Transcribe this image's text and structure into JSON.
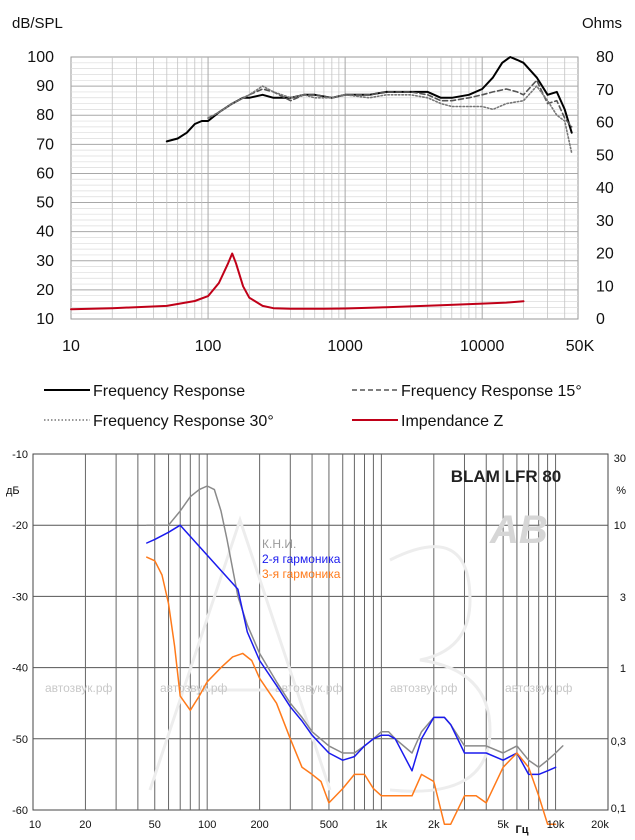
{
  "chart_data": [
    {
      "type": "line",
      "ylabel_left": "dB/SPL",
      "ylabel_right": "Ohms",
      "xscale": "log",
      "xlim": [
        10,
        50000
      ],
      "ylim_left": [
        10,
        100
      ],
      "ylim_right": [
        0,
        80
      ],
      "x_ticks": [
        {
          "value": 10,
          "label": "10"
        },
        {
          "value": 100,
          "label": "100"
        },
        {
          "value": 1000,
          "label": "1000"
        },
        {
          "value": 10000,
          "label": "10000"
        },
        {
          "value": 50000,
          "label": "50K"
        }
      ],
      "y_ticks_left": [
        "10",
        "20",
        "30",
        "40",
        "50",
        "60",
        "70",
        "80",
        "90",
        "100"
      ],
      "y_ticks_right": [
        "0",
        "10",
        "20",
        "30",
        "40",
        "50",
        "60",
        "70",
        "80"
      ],
      "grid": true,
      "series": [
        {
          "name": "Frequency Response",
          "axis": "left",
          "color": "#000000",
          "dash": "solid",
          "x": [
            50,
            60,
            70,
            80,
            90,
            100,
            120,
            150,
            180,
            200,
            250,
            300,
            400,
            500,
            600,
            800,
            1000,
            1500,
            2000,
            3000,
            4000,
            5000,
            6000,
            8000,
            10000,
            12000,
            14000,
            16000,
            18000,
            20000,
            25000,
            30000,
            35000,
            40000,
            45000
          ],
          "y": [
            71,
            72,
            74,
            77,
            78,
            78,
            81,
            84,
            86,
            86,
            87,
            86,
            86,
            87,
            87,
            86,
            87,
            87,
            88,
            88,
            88,
            86,
            86,
            87,
            89,
            93,
            98,
            100,
            99,
            98,
            93,
            87,
            88,
            82,
            74
          ]
        },
        {
          "name": "Frequency Response 15°",
          "axis": "left",
          "color": "#555555",
          "dash": "dashed",
          "x": [
            100,
            120,
            150,
            200,
            250,
            300,
            400,
            500,
            600,
            800,
            1000,
            1500,
            2000,
            3000,
            4000,
            5000,
            6000,
            8000,
            10000,
            12000,
            15000,
            18000,
            20000,
            25000,
            30000,
            35000,
            40000,
            45000
          ],
          "y": [
            79,
            81,
            84,
            87,
            89,
            88,
            85,
            87,
            87,
            86,
            87,
            87,
            88,
            88,
            87,
            85,
            85,
            86,
            87,
            88,
            89,
            88,
            87,
            92,
            84,
            85,
            79,
            76
          ]
        },
        {
          "name": "Frequency Response 30°",
          "axis": "left",
          "color": "#777777",
          "dash": "dotted",
          "x": [
            100,
            120,
            150,
            200,
            250,
            300,
            400,
            500,
            600,
            800,
            1000,
            1500,
            2000,
            3000,
            4000,
            5000,
            6000,
            8000,
            10000,
            12000,
            15000,
            20000,
            25000,
            30000,
            35000,
            40000,
            45000
          ],
          "y": [
            79,
            81,
            84,
            87,
            90,
            88,
            86,
            87,
            86,
            86,
            87,
            86,
            87,
            87,
            86,
            84,
            83,
            83,
            83,
            82,
            84,
            85,
            90,
            85,
            80,
            78,
            67
          ]
        },
        {
          "name": "Impendance Z",
          "axis": "right",
          "color": "#c00018",
          "dash": "solid",
          "x": [
            10,
            20,
            50,
            80,
            100,
            120,
            140,
            150,
            160,
            180,
            200,
            250,
            300,
            400,
            500,
            700,
            1000,
            2000,
            5000,
            10000,
            15000,
            20000
          ],
          "y": [
            3,
            3.3,
            4,
            5.5,
            7,
            11,
            17,
            20,
            17,
            10,
            6.5,
            4,
            3.3,
            3.1,
            3.1,
            3.1,
            3.2,
            3.6,
            4.2,
            4.7,
            5,
            5.4
          ]
        }
      ],
      "legend": [
        {
          "label": "Frequency Response",
          "style": "solid-black"
        },
        {
          "label": "Frequency Response 15°",
          "style": "dashed-gray"
        },
        {
          "label": "Frequency Response 30°",
          "style": "dotted-gray"
        },
        {
          "label": "Impendance Z",
          "style": "solid-red"
        }
      ]
    },
    {
      "type": "line",
      "title": "BLAM LFR 80",
      "ylabel_left": "дБ",
      "ylabel_right": "%",
      "xlabel": "Гц",
      "xscale": "log",
      "xlim": [
        10,
        20000
      ],
      "ylim_left": [
        -60,
        -10
      ],
      "x_ticks": [
        "10",
        "20",
        "50",
        "100",
        "200",
        "500",
        "1k",
        "2k",
        "5k",
        "10k",
        "20k"
      ],
      "y_ticks_left": [
        "-10",
        "-20",
        "-30",
        "-40",
        "-50",
        "-60"
      ],
      "y_ticks_right": [
        "30",
        "10",
        "3",
        "1",
        "0,3",
        "0,1"
      ],
      "grid": true,
      "legend_labels": [
        "К.Н.И.",
        "2-я гармоника",
        "3-я гармоника"
      ],
      "watermark": "автозвук.рф",
      "series": [
        {
          "name": "К.Н.И.",
          "color": "#8a8a8a",
          "x": [
            45,
            50,
            60,
            70,
            80,
            90,
            100,
            110,
            120,
            130,
            150,
            170,
            200,
            250,
            300,
            350,
            400,
            500,
            600,
            700,
            800,
            900,
            1000,
            1100,
            1200,
            1500,
            1700,
            2000,
            2300,
            2500,
            3000,
            3500,
            4000,
            5000,
            6000,
            7000,
            8000,
            9000,
            10000,
            11000
          ],
          "y": [
            -20,
            -20,
            -20,
            -18,
            -16,
            -15,
            -14.5,
            -15,
            -18,
            -22,
            -30,
            -34,
            -38,
            -42,
            -45,
            -47,
            -49,
            -51,
            -52,
            -52,
            -51,
            -50,
            -49,
            -49,
            -50,
            -52,
            -49,
            -47,
            -47,
            -48,
            -51,
            -51,
            -51,
            -52,
            -51,
            -53,
            -54,
            -53,
            -52,
            -51
          ]
        },
        {
          "name": "2-я гармоника",
          "color": "#1a1aee",
          "x": [
            45,
            50,
            60,
            70,
            150,
            170,
            200,
            250,
            300,
            350,
            400,
            500,
            600,
            700,
            800,
            900,
            1000,
            1100,
            1200,
            1500,
            1700,
            2000,
            2300,
            2500,
            3000,
            3500,
            4000,
            5000,
            6000,
            7000,
            8000,
            9000,
            10000
          ],
          "y": [
            -22.5,
            -22,
            -21,
            -20,
            -29,
            -35,
            -39,
            -42.5,
            -45.5,
            -47.5,
            -49.5,
            -52,
            -53,
            -52.5,
            -51,
            -50,
            -49.5,
            -49.5,
            -50,
            -54.5,
            -50,
            -47,
            -47,
            -48,
            -52,
            -52,
            -52,
            -53,
            -52,
            -55,
            -55,
            -54.5,
            -54
          ]
        },
        {
          "name": "3-я гармоника",
          "color": "#ff7a1a",
          "x": [
            45,
            50,
            55,
            60,
            65,
            70,
            80,
            90,
            100,
            120,
            140,
            160,
            180,
            200,
            250,
            300,
            350,
            400,
            450,
            500,
            600,
            700,
            800,
            900,
            1000,
            1200,
            1500,
            1700,
            2000,
            2300,
            2500,
            3000,
            3500,
            4000,
            5000,
            6000,
            7000,
            8000,
            9000,
            10000
          ],
          "y": [
            -24.5,
            -25,
            -27,
            -31,
            -37,
            -44,
            -46,
            -44,
            -42,
            -40,
            -38.5,
            -38,
            -39,
            -41.5,
            -45,
            -50,
            -54,
            -55,
            -56,
            -59,
            -57,
            -55,
            -55,
            -57,
            -58,
            -58,
            -58,
            -55,
            -56,
            -62,
            -62,
            -58,
            -58,
            -59,
            -54,
            -52,
            -54,
            -58,
            -62,
            -62
          ]
        }
      ]
    }
  ]
}
